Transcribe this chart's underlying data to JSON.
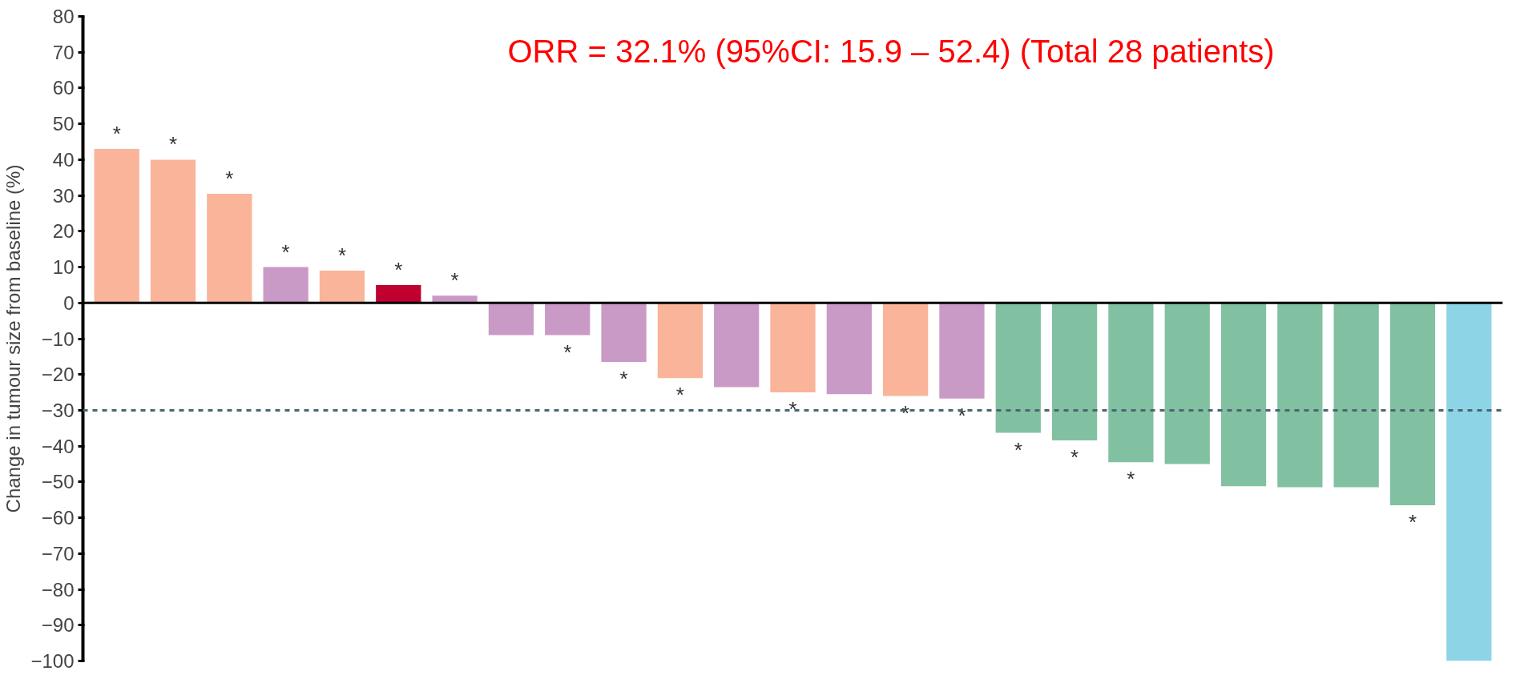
{
  "chart_data": {
    "type": "bar",
    "ylabel": "Change in tumour size from baseline (%)",
    "annotations": [
      "ORR = 32.1% (95%CI: 15.9 – 52.4) (Total 28 patients)"
    ],
    "categories": [
      null,
      null,
      null,
      null,
      null,
      null,
      null,
      null,
      null,
      null,
      null,
      null,
      null,
      null,
      null,
      null,
      null,
      null,
      null,
      null,
      null,
      null,
      null,
      null,
      null
    ],
    "values": [
      43,
      40,
      30.5,
      10,
      9,
      5,
      2,
      -9,
      -9,
      -16.5,
      -21,
      -23.5,
      -25,
      -25.5,
      -26,
      -26.7,
      -36.3,
      -38.4,
      -44.5,
      -45,
      -51.2,
      -51.5,
      -51.5,
      -56.5,
      -100
    ],
    "colors": [
      "#f9b49a",
      "#f9b49a",
      "#f9b49a",
      "#c99ac6",
      "#f9b49a",
      "#c0002f",
      "#c99ac6",
      "#c99ac6",
      "#c99ac6",
      "#c99ac6",
      "#f9b49a",
      "#c99ac6",
      "#f9b49a",
      "#c99ac6",
      "#f9b49a",
      "#c99ac6",
      "#82c0a2",
      "#82c0a2",
      "#82c0a2",
      "#82c0a2",
      "#82c0a2",
      "#82c0a2",
      "#82c0a2",
      "#82c0a2",
      "#8dd5e6"
    ],
    "value_labels": [
      "*",
      "*",
      "*",
      "*",
      "*",
      "*",
      "*",
      null,
      "*",
      "*",
      "*",
      null,
      "*",
      null,
      "*",
      "*",
      "*",
      "*",
      "*",
      null,
      null,
      null,
      null,
      "*",
      null
    ],
    "ylim": [
      -100,
      80
    ],
    "yticks": [
      -100,
      -90,
      -80,
      -70,
      -60,
      -50,
      -40,
      -30,
      -20,
      -10,
      0,
      10,
      20,
      30,
      40,
      50,
      60,
      70,
      80
    ],
    "ref_lines": [
      {
        "axis": "y",
        "value": 0,
        "color": "#000000",
        "line_style": "solid"
      },
      {
        "axis": "y",
        "value": -30,
        "color": "#4a6670",
        "line_style": "dashed"
      }
    ],
    "grid": false,
    "tick_labels": "y"
  }
}
